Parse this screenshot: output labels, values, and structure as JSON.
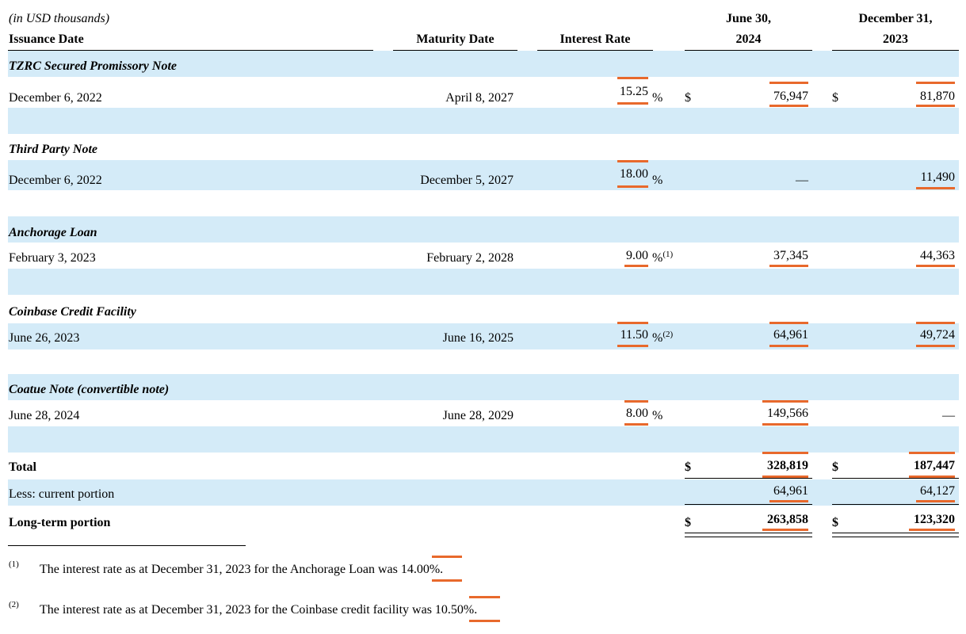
{
  "header": {
    "units_note": "(in USD thousands)",
    "col_issuance": "Issuance Date",
    "col_maturity": "Maturity Date",
    "col_rate": "Interest Rate",
    "col_jun_line1": "June 30,",
    "col_jun_line2": "2024",
    "col_dec_line1": "December 31,",
    "col_dec_line2": "2023"
  },
  "sections": [
    {
      "title": "TZRC Secured Promissory Note",
      "issuance": "December 6, 2022",
      "maturity": "April 8, 2027",
      "rate": "15.25",
      "pct": "%",
      "jun_sym": "$",
      "jun": "76,947",
      "dec_sym": "$",
      "dec": "81,870"
    },
    {
      "title": "Third Party Note",
      "issuance": "December 6, 2022",
      "maturity": "December 5, 2027",
      "rate": "18.00",
      "pct": "%",
      "jun": "—",
      "dec": "11,490"
    },
    {
      "title": "Anchorage Loan",
      "issuance": "February 3, 2023",
      "maturity": "February 2, 2028",
      "rate": "9.00",
      "pct": "%",
      "note": "(1)",
      "jun": "37,345",
      "dec": "44,363"
    },
    {
      "title": "Coinbase Credit Facility",
      "issuance": "June 26, 2023",
      "maturity": "June 16, 2025",
      "rate": "11.50",
      "pct": "%",
      "note": "(2)",
      "jun": "64,961",
      "dec": "49,724"
    },
    {
      "title": "Coatue Note (convertible note)",
      "issuance": "June 28, 2024",
      "maturity": "June 28, 2029",
      "rate": "8.00",
      "pct": "%",
      "jun": "149,566",
      "dec": "—"
    }
  ],
  "totals": {
    "total_label": "Total",
    "total_jun_sym": "$",
    "total_jun": "328,819",
    "total_dec_sym": "$",
    "total_dec": "187,447",
    "current_label": "Less: current portion",
    "current_jun": "64,961",
    "current_dec": "64,127",
    "lt_label": "Long-term portion",
    "lt_jun_sym": "$",
    "lt_jun": "263,858",
    "lt_dec_sym": "$",
    "lt_dec": "123,320"
  },
  "footnotes": [
    {
      "mark": "(1)",
      "text": "The interest rate as at December 31, 2023 for the Anchorage Loan was ",
      "value": "14.00%",
      "end": "."
    },
    {
      "mark": "(2)",
      "text": "The interest rate as at December 31, 2023 for the Coinbase credit facility was ",
      "value": "10.50%",
      "end": "."
    }
  ],
  "colors": {
    "band": "#d4ebf8",
    "highlight": "#e8692c"
  }
}
